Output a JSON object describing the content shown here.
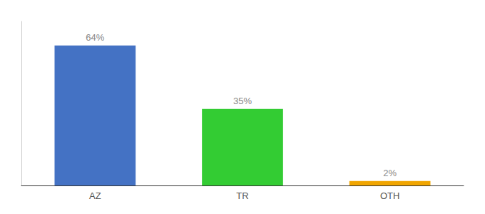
{
  "chart_data": {
    "type": "bar",
    "categories": [
      "AZ",
      "TR",
      "OTH"
    ],
    "values": [
      64,
      35,
      2
    ],
    "value_labels": [
      "64%",
      "35%",
      "2%"
    ],
    "colors": [
      "#4472c4",
      "#33cc33",
      "#f0a500"
    ],
    "ylim": [
      0,
      75
    ],
    "grid": false,
    "data_labels": true,
    "tick_labels": "x"
  }
}
